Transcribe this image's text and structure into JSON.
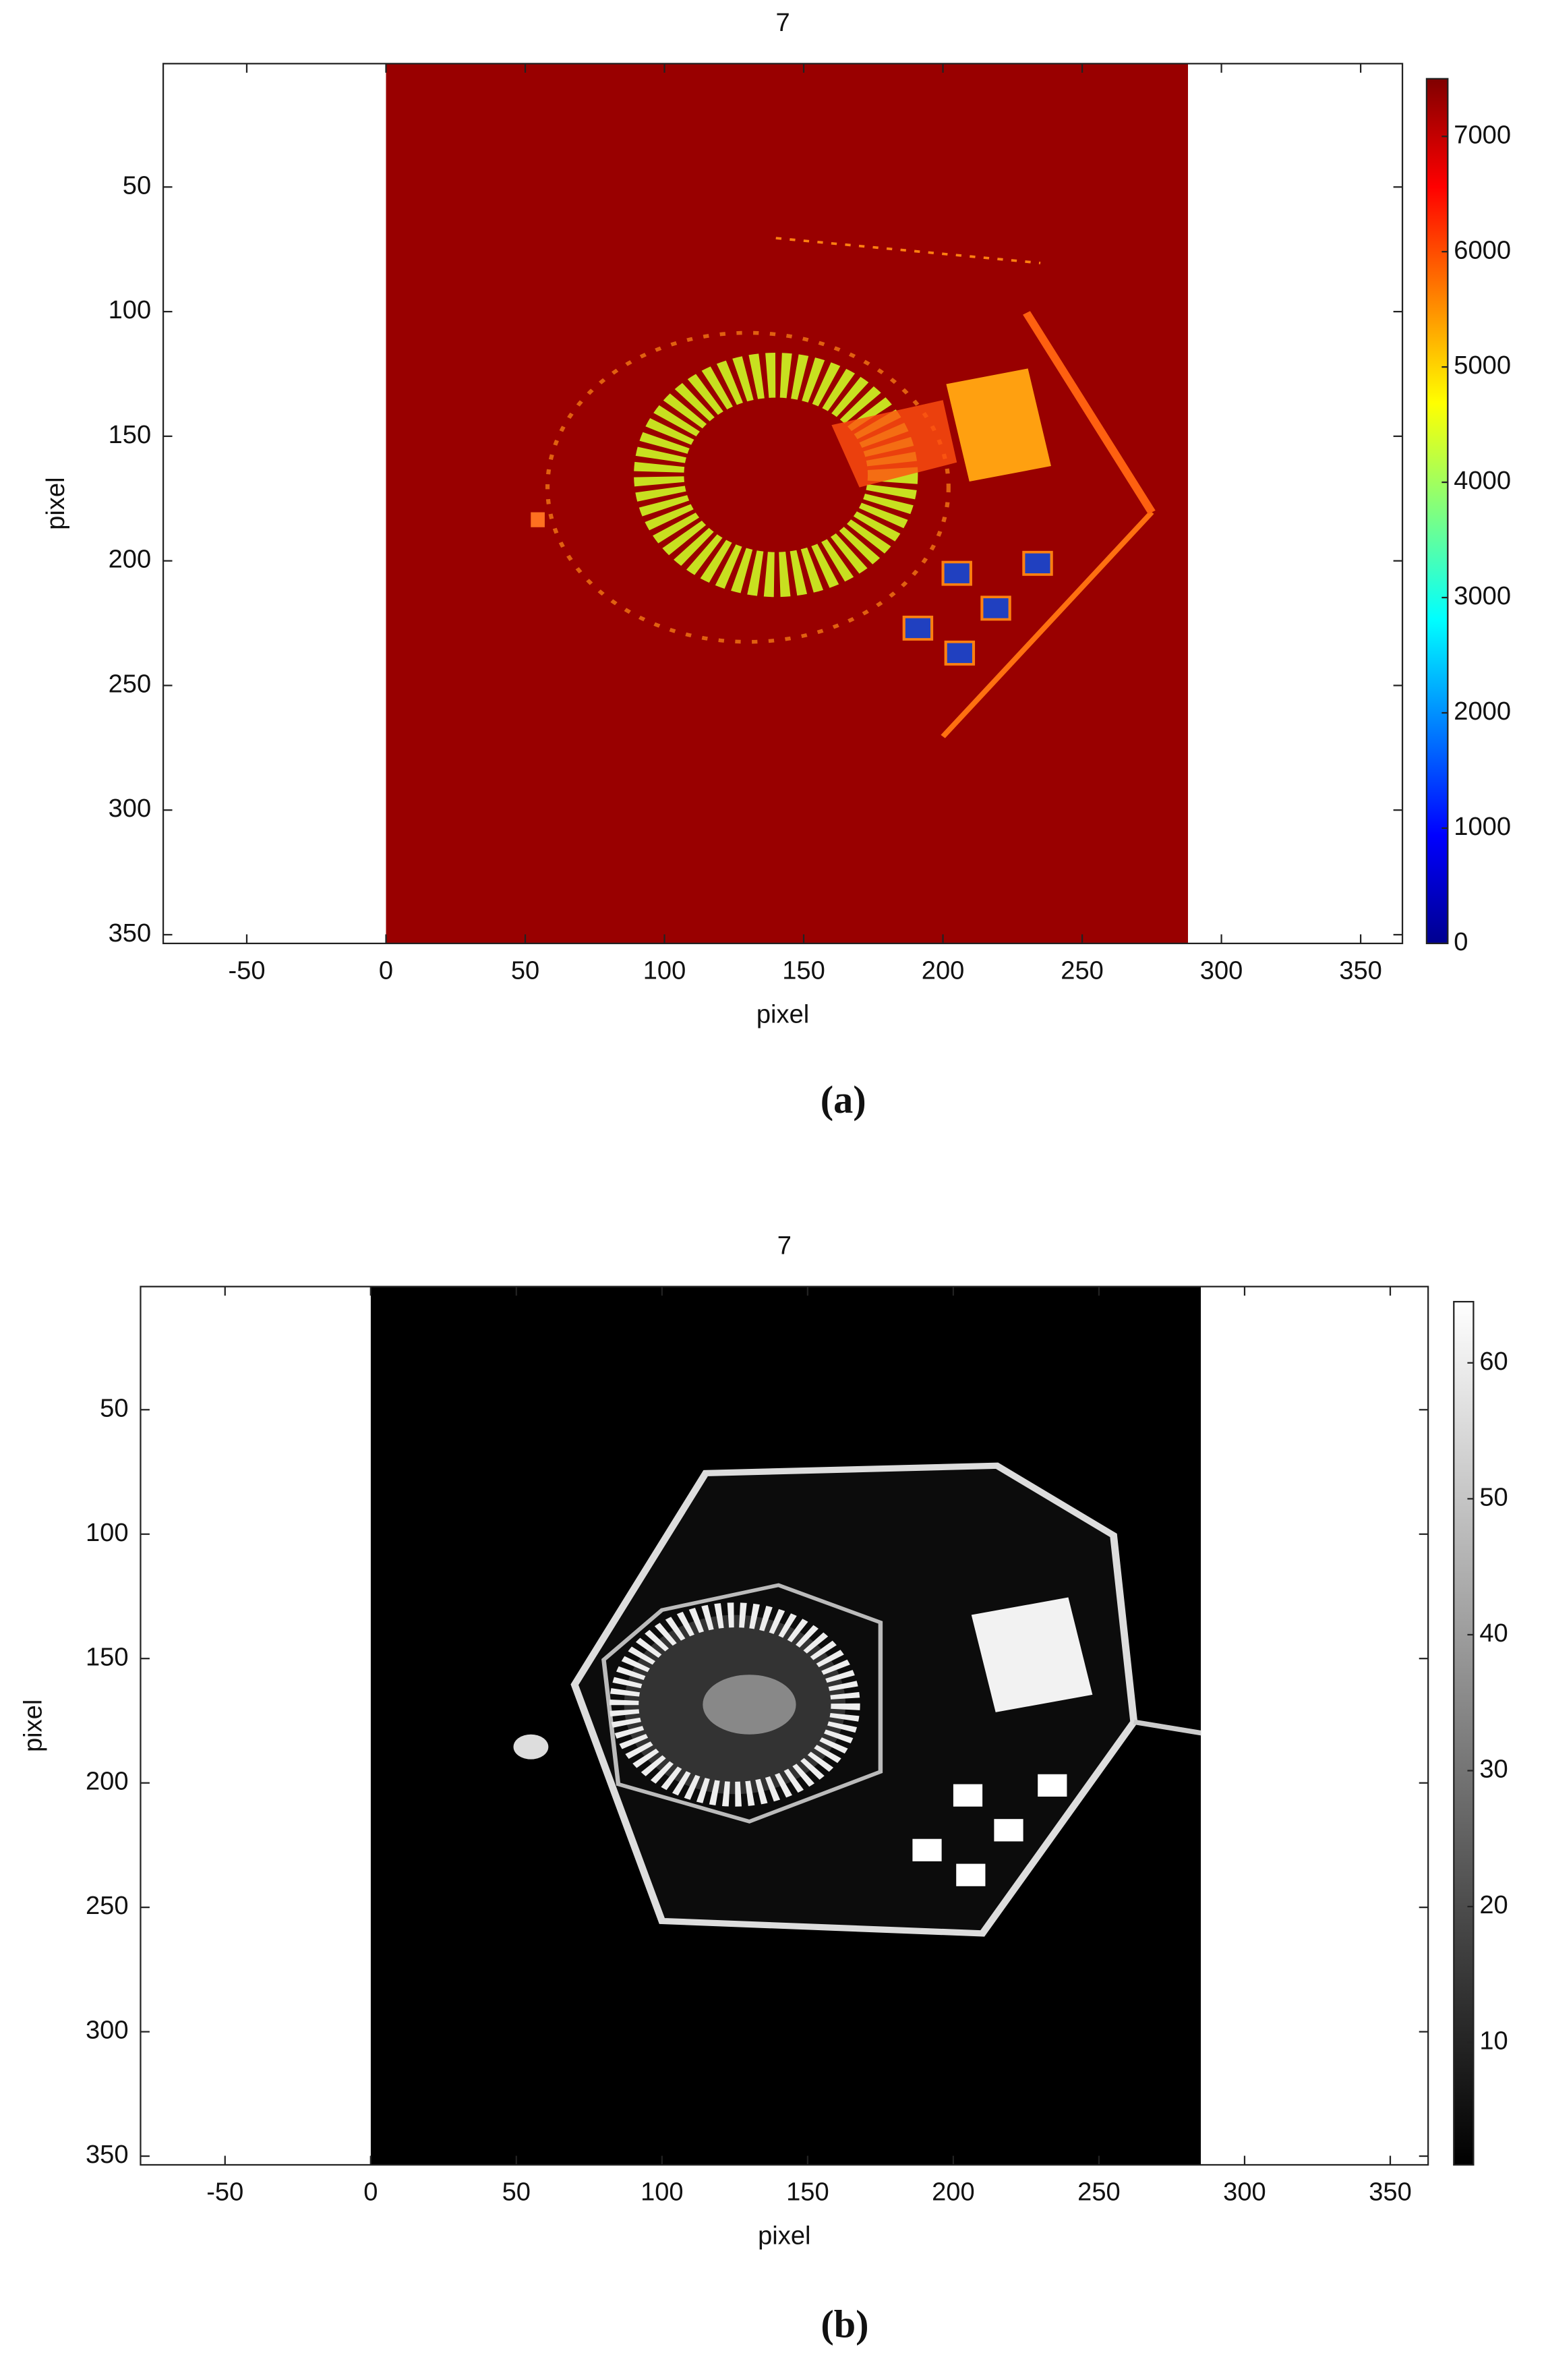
{
  "chart_data": [
    {
      "type": "image",
      "title": "7",
      "xlabel": "pixel",
      "ylabel": "pixel",
      "panel_label": "(a)",
      "xlim": [
        -80,
        365
      ],
      "ylim": [
        353.5,
        0.5
      ],
      "xticks": [
        -50,
        0,
        50,
        100,
        150,
        200,
        250,
        300,
        350
      ],
      "yticks": [
        50,
        100,
        150,
        200,
        250,
        300,
        350
      ],
      "image_xlim": [
        0,
        288
      ],
      "colormap": "jet",
      "clim": [
        0,
        7500
      ],
      "cticks": [
        0,
        1000,
        2000,
        3000,
        4000,
        5000,
        6000,
        7000
      ]
    },
    {
      "type": "image",
      "title": "7",
      "xlabel": "pixel",
      "ylabel": "pixel",
      "panel_label": "(b)",
      "xlim": [
        -79,
        363
      ],
      "ylim": [
        353.5,
        0.5
      ],
      "xticks": [
        -50,
        0,
        50,
        100,
        150,
        200,
        250,
        300,
        350
      ],
      "yticks": [
        50,
        100,
        150,
        200,
        250,
        300,
        350
      ],
      "image_xlim": [
        0,
        285
      ],
      "colormap": "gray",
      "clim": [
        1,
        64.5
      ],
      "cticks": [
        10,
        20,
        30,
        40,
        50,
        60
      ]
    }
  ]
}
